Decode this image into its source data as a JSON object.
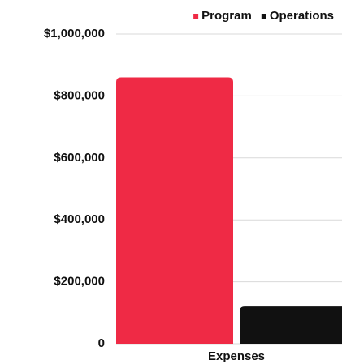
{
  "chart_data": {
    "type": "bar",
    "categories": [
      "Expenses"
    ],
    "series": [
      {
        "name": "Program",
        "color": "#ef2a45",
        "values": [
          860000
        ]
      },
      {
        "name": "Operations",
        "color": "#111111",
        "values": [
          120000
        ]
      }
    ],
    "ylim": [
      0,
      1000000
    ],
    "yticks": [
      0,
      {
        "value": 200000,
        "label": "$200,000"
      },
      {
        "value": 400000,
        "label": "$400,000"
      },
      {
        "value": 600000,
        "label": "$600,000"
      },
      {
        "value": 800000,
        "label": "$800,000"
      },
      {
        "value": 1000000,
        "label": "$1,000,000"
      }
    ],
    "grid": true,
    "legend": "top-right"
  }
}
